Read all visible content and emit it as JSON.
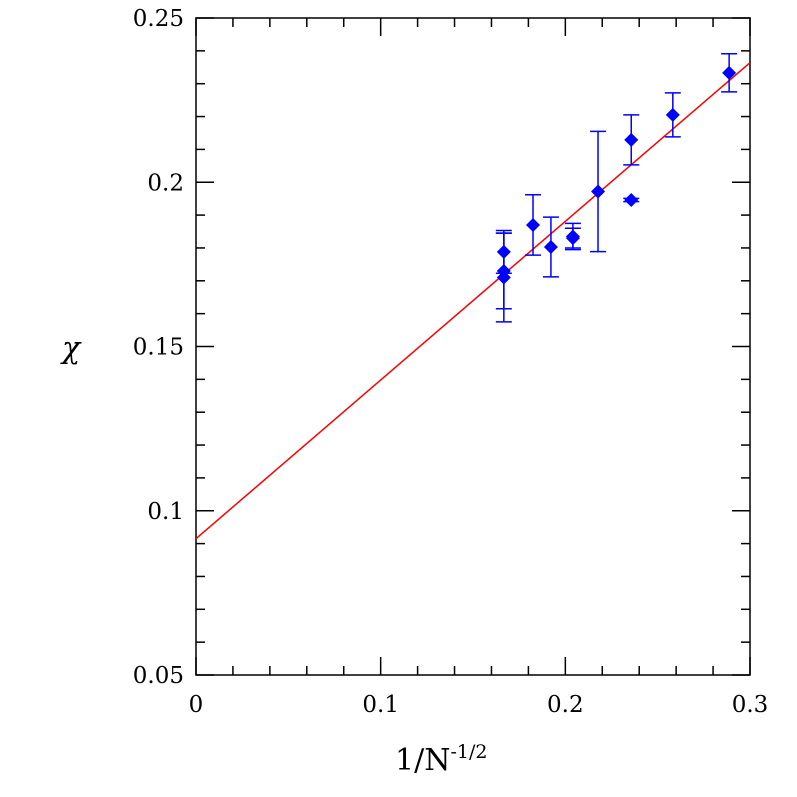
{
  "chart_data": {
    "type": "scatter",
    "title": "",
    "xlabel": "1/N",
    "xlabel_superscript": "-1/2",
    "ylabel": "χ",
    "xlim": [
      0,
      0.3
    ],
    "ylim": [
      0.05,
      0.25
    ],
    "xticks": [
      0,
      0.1,
      0.2,
      0.3
    ],
    "xtick_labels": [
      "0",
      "0.1",
      "0.2",
      "0.3"
    ],
    "yticks": [
      0.05,
      0.1,
      0.15,
      0.2,
      0.25
    ],
    "ytick_labels": [
      "0.05",
      "0.1",
      "0.15",
      "0.2",
      "0.25"
    ],
    "x_minor_step": 0.02,
    "y_minor_step": 0.01,
    "grid": false,
    "marker_color": "#0000ff",
    "fit_color": "#ff0000",
    "points": [
      {
        "x": 0.1667,
        "y": 0.1788,
        "err": 0.0065
      },
      {
        "x": 0.1667,
        "y": 0.173,
        "err": 0.0115
      },
      {
        "x": 0.1667,
        "y": 0.171,
        "err": 0.0135
      },
      {
        "x": 0.1825,
        "y": 0.187,
        "err": 0.0092
      },
      {
        "x": 0.1922,
        "y": 0.1803,
        "err": 0.0091
      },
      {
        "x": 0.2041,
        "y": 0.1835,
        "err": 0.004
      },
      {
        "x": 0.2041,
        "y": 0.183,
        "err": 0.003
      },
      {
        "x": 0.2177,
        "y": 0.1972,
        "err": 0.0183
      },
      {
        "x": 0.2357,
        "y": 0.2129,
        "err": 0.0076
      },
      {
        "x": 0.2357,
        "y": 0.1946,
        "err": 0.0005
      },
      {
        "x": 0.2582,
        "y": 0.2205,
        "err": 0.0067
      },
      {
        "x": 0.2887,
        "y": 0.2333,
        "err": 0.0058
      }
    ],
    "fit_line": {
      "x": [
        0,
        0.3
      ],
      "y": [
        0.0915,
        0.2364
      ]
    }
  }
}
